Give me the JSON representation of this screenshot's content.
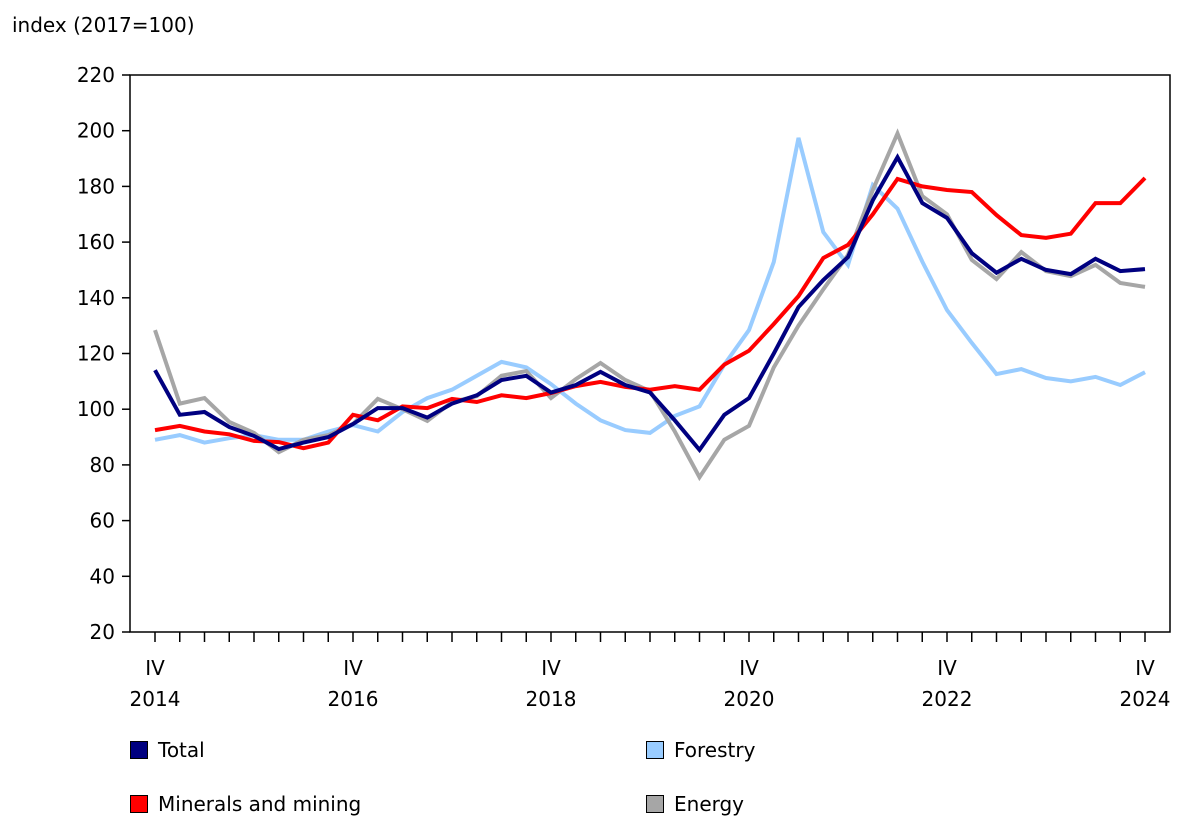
{
  "chart_data": {
    "type": "line",
    "ylabel": "index (2017=100)",
    "ylim": [
      20,
      220
    ],
    "yticks": [
      20,
      40,
      60,
      80,
      100,
      120,
      140,
      160,
      180,
      200,
      220
    ],
    "grid": false,
    "legend_position": "bottom",
    "x_tick_labels": [
      {
        "quarter": "IV",
        "year": "2014"
      },
      {
        "quarter": "IV",
        "year": "2016"
      },
      {
        "quarter": "IV",
        "year": "2018"
      },
      {
        "quarter": "IV",
        "year": "2020"
      },
      {
        "quarter": "IV",
        "year": "2022"
      },
      {
        "quarter": "IV",
        "year": "2024"
      }
    ],
    "x_start": "2014 Q4",
    "x_end": "2024 Q4",
    "series": [
      {
        "name": "Total",
        "color": "#000080",
        "values": [
          114,
          98,
          99,
          93.6,
          90.4,
          85.7,
          88,
          90,
          94.7,
          100.4,
          100.4,
          97,
          102,
          105,
          110.5,
          112,
          106,
          108.7,
          113.4,
          108.7,
          106,
          96,
          85.4,
          98,
          104,
          120,
          136.7,
          146.4,
          154.6,
          175,
          190.5,
          174,
          168.7,
          156,
          149,
          154,
          150,
          148.5,
          154,
          149.6,
          150.3
        ]
      },
      {
        "name": "Forestry",
        "color": "#99ccff",
        "values": [
          89,
          90.7,
          88,
          89.6,
          90.7,
          89,
          89,
          92,
          94.3,
          92,
          99,
          104,
          107,
          112,
          117,
          115,
          109,
          102,
          96,
          92.5,
          91.5,
          97.6,
          101,
          116,
          128.4,
          152.9,
          197.4,
          163.6,
          151.8,
          180.5,
          172,
          153,
          135.6,
          123.8,
          112.6,
          114.4,
          111.2,
          110,
          111.6,
          108.7,
          113.3
        ]
      },
      {
        "name": "Minerals and mining",
        "color": "#ff0000",
        "values": [
          92.5,
          94,
          92,
          91,
          88.6,
          88.2,
          86,
          88,
          98,
          96,
          101,
          100.4,
          103.7,
          102.6,
          105,
          104,
          105.8,
          108.3,
          109.8,
          108,
          107,
          108.3,
          107,
          116,
          121,
          130.6,
          140.6,
          154.3,
          159,
          170,
          182.7,
          180,
          178.7,
          178,
          169.7,
          162.5,
          161.5,
          163,
          174,
          174,
          183
        ]
      },
      {
        "name": "Energy",
        "color": "#a6a6a6",
        "values": [
          128.4,
          102,
          104,
          95.4,
          91.5,
          84.6,
          89,
          90.7,
          94.7,
          103.7,
          100,
          95.8,
          102.6,
          104.7,
          112,
          113.7,
          104,
          110.8,
          116.6,
          110.5,
          106.5,
          92,
          75.6,
          89,
          94,
          115,
          130,
          143,
          155.4,
          178.7,
          199,
          176.5,
          170,
          153.6,
          146.7,
          156.4,
          149.6,
          147.8,
          151.8,
          145.3,
          143.9
        ]
      }
    ]
  }
}
